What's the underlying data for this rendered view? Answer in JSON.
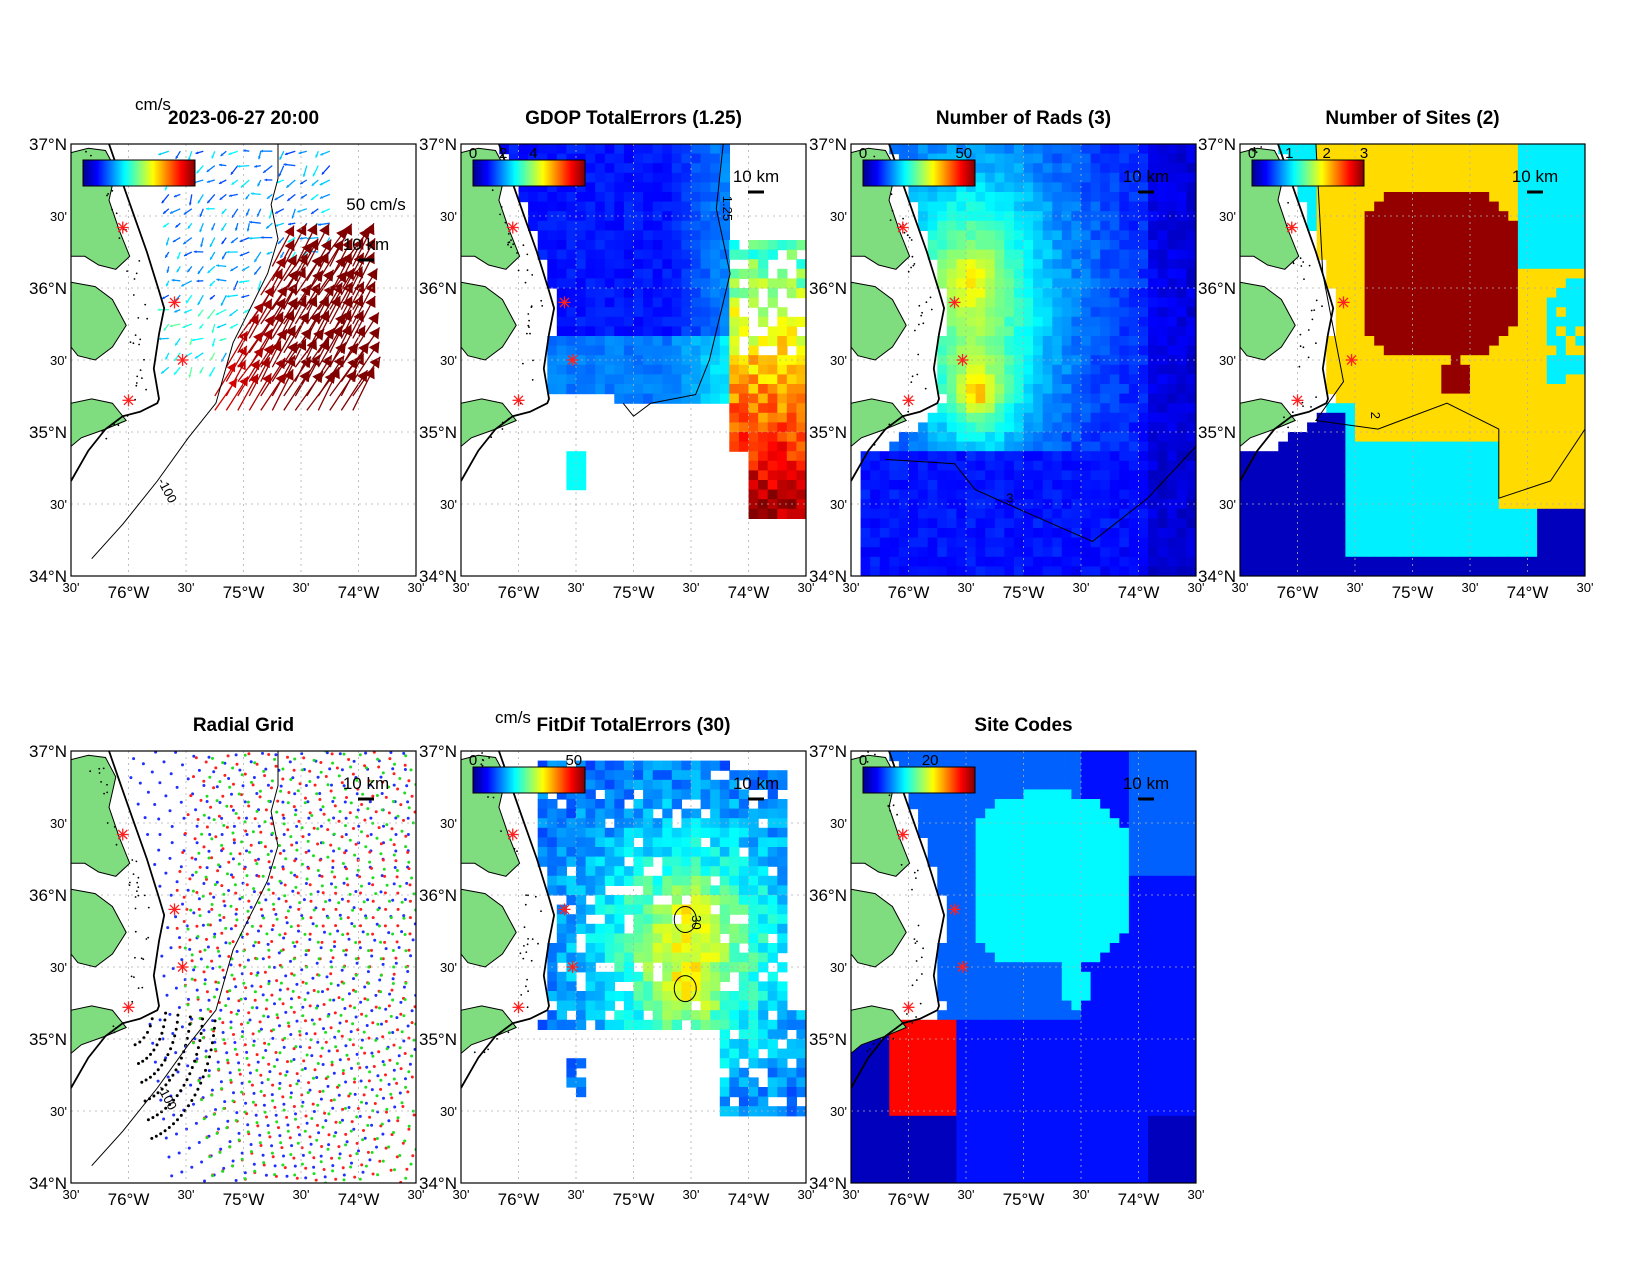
{
  "figure": {
    "colors": {
      "land": "#7fdc7f",
      "coastline": "#000000",
      "site_marker": "#ff2020",
      "grid": "#b0b0b0",
      "missing": "#ffffff"
    },
    "map_extent": {
      "lon": [
        -76.5,
        -73.5
      ],
      "lat": [
        34.0,
        37.0
      ]
    },
    "lat_ticks": [
      {
        "value": 37.0,
        "label": "37°N",
        "major": true
      },
      {
        "value": 36.5,
        "label": "30'",
        "major": false
      },
      {
        "value": 36.0,
        "label": "36°N",
        "major": true
      },
      {
        "value": 35.5,
        "label": "30'",
        "major": false
      },
      {
        "value": 35.0,
        "label": "35°N",
        "major": true
      },
      {
        "value": 34.5,
        "label": "30'",
        "major": false
      },
      {
        "value": 34.0,
        "label": "34°N",
        "major": true
      }
    ],
    "lon_ticks": [
      {
        "value": -76.5,
        "label": "30'",
        "major": false
      },
      {
        "value": -76.0,
        "label": "76°W",
        "major": true
      },
      {
        "value": -75.5,
        "label": "30'",
        "major": false
      },
      {
        "value": -75.0,
        "label": "75°W",
        "major": true
      },
      {
        "value": -74.5,
        "label": "30'",
        "major": false
      },
      {
        "value": -74.0,
        "label": "74°W",
        "major": true
      },
      {
        "value": -73.5,
        "label": "30'",
        "major": false
      }
    ],
    "sites": [
      {
        "lon": -76.05,
        "lat": 36.42
      },
      {
        "lon": -75.6,
        "lat": 35.9
      },
      {
        "lon": -75.53,
        "lat": 35.5
      },
      {
        "lon": -76.0,
        "lat": 35.22
      }
    ],
    "panels": [
      {
        "id": "total-vectors",
        "title": "2023-06-27 20:00",
        "kind": "vectors",
        "colorbar": {
          "unit": "cm/s",
          "ticks": []
        },
        "reference_vector_label": "50 cm/s",
        "scale_label": "10 km",
        "isobath_label": "-100"
      },
      {
        "id": "gdop-total-errors",
        "title": "GDOP TotalErrors (1.25)",
        "kind": "gdop",
        "colorbar": {
          "unit": "",
          "ticks": [
            "0",
            "2",
            "4"
          ]
        },
        "scale_label": "10 km",
        "contour_label": "1.25"
      },
      {
        "id": "number-of-rads",
        "title": "Number of Rads (3)",
        "kind": "rads",
        "colorbar": {
          "unit": "",
          "ticks": [
            "0",
            "50"
          ]
        },
        "scale_label": "10 km",
        "contour_label": "3"
      },
      {
        "id": "number-of-sites",
        "title": "Number of Sites (2)",
        "kind": "sites",
        "colorbar": {
          "unit": "",
          "ticks": [
            "0",
            "1",
            "2",
            "3"
          ]
        },
        "scale_label": "10 km",
        "contour_label": "2"
      },
      {
        "id": "radial-grid",
        "title": "Radial Grid",
        "kind": "radial",
        "colorbar": null,
        "scale_label": "10 km",
        "isobath_label": "-100"
      },
      {
        "id": "fitdif-total-errors",
        "title": "FitDif TotalErrors (30)",
        "kind": "fitdif",
        "colorbar": {
          "unit": "cm/s",
          "ticks": [
            "0",
            "50"
          ]
        },
        "scale_label": "10 km",
        "contour_label": "30"
      },
      {
        "id": "site-codes",
        "title": "Site Codes",
        "kind": "codes",
        "colorbar": {
          "unit": "",
          "ticks": [
            "0",
            "20"
          ]
        },
        "scale_label": "10 km"
      }
    ]
  }
}
